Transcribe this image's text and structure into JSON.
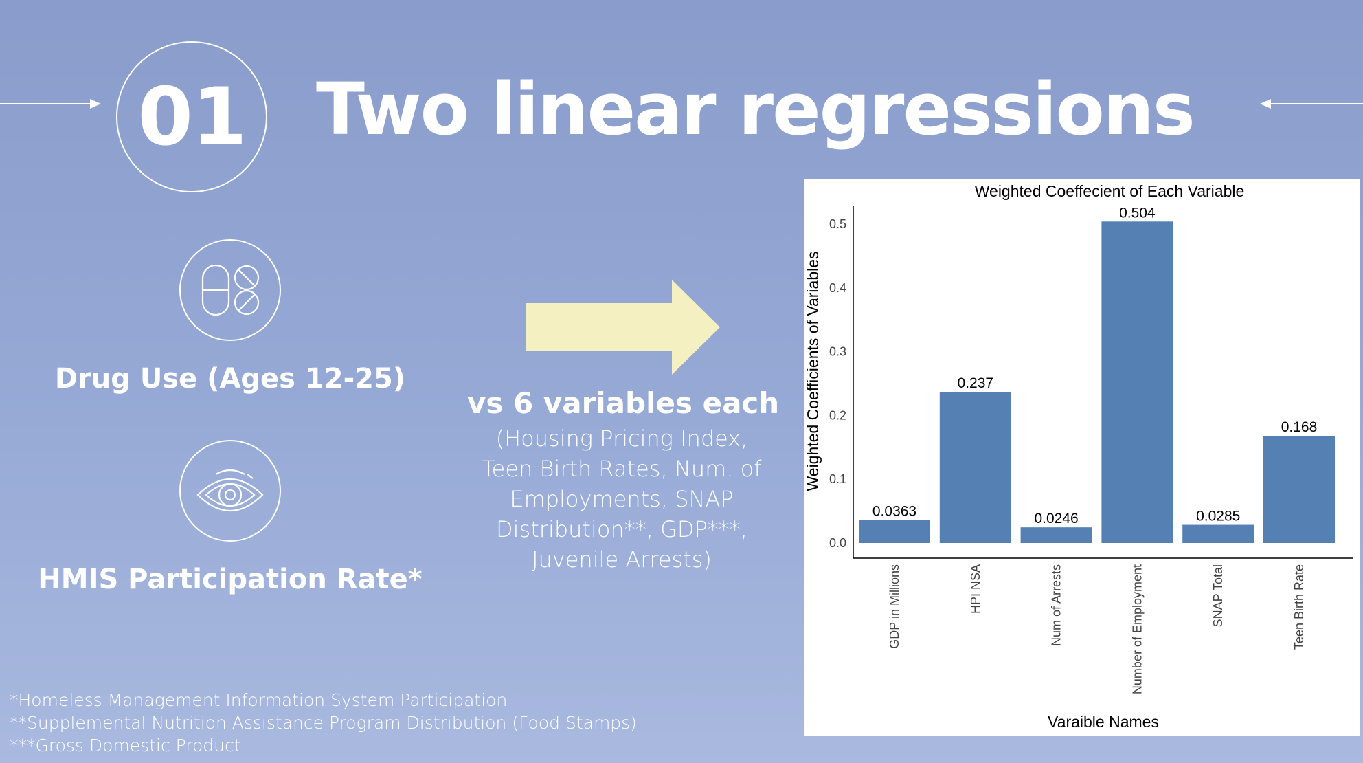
{
  "header": {
    "number": "01",
    "title": "Two linear regressions"
  },
  "left": {
    "item1": {
      "icon": "pills-icon",
      "label": "Drug Use (Ages 12-25)"
    },
    "item2": {
      "icon": "eye-icon",
      "label": "HMIS Participation Rate*"
    }
  },
  "middle": {
    "arrow_color": "#f5f0c2",
    "heading": "vs 6 variables each",
    "description": "(Housing Pricing Index, Teen Birth Rates, Num. of Employments, SNAP Distribution**, GDP***, Juvenile Arrests)"
  },
  "footnotes": [
    "*Homeless Management Information System Participation",
    "**Supplemental Nutrition Assistance Program Distribution (Food Stamps)",
    "***Gross Domestic Product"
  ],
  "chart_data": {
    "type": "bar",
    "title": "Weighted Coeffecient of Each Variable",
    "xlabel": "Varaible Names",
    "ylabel": "Weighted Coefficients of Variables",
    "categories": [
      "GDP in Millions",
      "HPI NSA",
      "Num of Arrests",
      "Number of Employment",
      "SNAP Total",
      "Teen Birth Rate"
    ],
    "values": [
      0.0363,
      0.237,
      0.0246,
      0.504,
      0.0285,
      0.168
    ],
    "data_labels": [
      "0.0363",
      "0.237",
      "0.0246",
      "0.504",
      "0.0285",
      "0.168"
    ],
    "yticks": [
      "0.0",
      "0.1",
      "0.2",
      "0.3",
      "0.4",
      "0.5"
    ],
    "ylim": [
      0,
      0.53
    ],
    "bar_color": "#5580b4",
    "grid": false
  }
}
